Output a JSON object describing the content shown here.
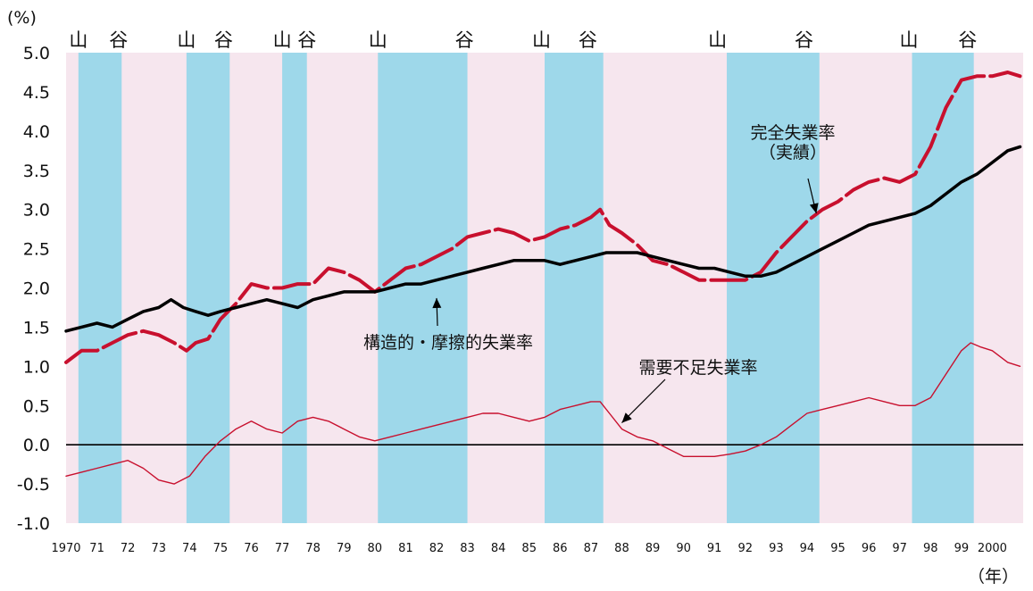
{
  "chart_data": {
    "type": "line",
    "y_unit_label": "(%)",
    "x_unit_label": "（年）",
    "ylim": [
      -1.0,
      5.0
    ],
    "xlim": [
      1970,
      2001
    ],
    "y_ticks": [
      "5.0",
      "4.5",
      "4.0",
      "3.5",
      "3.0",
      "2.5",
      "2.0",
      "1.5",
      "1.0",
      "0.5",
      "0.0",
      "-0.5",
      "-1.0"
    ],
    "x_ticks": [
      {
        "x": 1970,
        "label": "1970"
      },
      {
        "x": 1971,
        "label": "71"
      },
      {
        "x": 1972,
        "label": "72"
      },
      {
        "x": 1973,
        "label": "73"
      },
      {
        "x": 1974,
        "label": "74"
      },
      {
        "x": 1975,
        "label": "75"
      },
      {
        "x": 1976,
        "label": "76"
      },
      {
        "x": 1977,
        "label": "77"
      },
      {
        "x": 1978,
        "label": "78"
      },
      {
        "x": 1979,
        "label": "79"
      },
      {
        "x": 1980,
        "label": "80"
      },
      {
        "x": 1981,
        "label": "81"
      },
      {
        "x": 1982,
        "label": "82"
      },
      {
        "x": 1983,
        "label": "83"
      },
      {
        "x": 1984,
        "label": "84"
      },
      {
        "x": 1985,
        "label": "85"
      },
      {
        "x": 1986,
        "label": "86"
      },
      {
        "x": 1987,
        "label": "87"
      },
      {
        "x": 1988,
        "label": "88"
      },
      {
        "x": 1989,
        "label": "89"
      },
      {
        "x": 1990,
        "label": "90"
      },
      {
        "x": 1991,
        "label": "91"
      },
      {
        "x": 1992,
        "label": "92"
      },
      {
        "x": 1993,
        "label": "93"
      },
      {
        "x": 1994,
        "label": "94"
      },
      {
        "x": 1995,
        "label": "95"
      },
      {
        "x": 1996,
        "label": "96"
      },
      {
        "x": 1997,
        "label": "97"
      },
      {
        "x": 1998,
        "label": "98"
      },
      {
        "x": 1999,
        "label": "99"
      },
      {
        "x": 2000,
        "label": "2000"
      }
    ],
    "recession_bands": [
      {
        "start": 1970.4,
        "end": 1971.8
      },
      {
        "start": 1973.9,
        "end": 1975.3
      },
      {
        "start": 1977.0,
        "end": 1977.8
      },
      {
        "start": 1980.1,
        "end": 1983.0
      },
      {
        "start": 1985.5,
        "end": 1987.4
      },
      {
        "start": 1991.4,
        "end": 1994.4
      },
      {
        "start": 1997.4,
        "end": 1999.4
      }
    ],
    "phase_labels": [
      {
        "x": 1970.4,
        "text": "山"
      },
      {
        "x": 1971.7,
        "text": "谷"
      },
      {
        "x": 1973.9,
        "text": "山"
      },
      {
        "x": 1975.1,
        "text": "谷"
      },
      {
        "x": 1977.0,
        "text": "山"
      },
      {
        "x": 1977.8,
        "text": "谷"
      },
      {
        "x": 1980.1,
        "text": "山"
      },
      {
        "x": 1982.9,
        "text": "谷"
      },
      {
        "x": 1985.4,
        "text": "山"
      },
      {
        "x": 1986.9,
        "text": "谷"
      },
      {
        "x": 1991.1,
        "text": "山"
      },
      {
        "x": 1993.9,
        "text": "谷"
      },
      {
        "x": 1997.3,
        "text": "山"
      },
      {
        "x": 1999.2,
        "text": "谷"
      }
    ],
    "series": [
      {
        "name": "完全失業率（実績）",
        "color": "#c8102e",
        "style": "dashed-thick",
        "x": [
          1970.0,
          1970.5,
          1971.0,
          1971.5,
          1972.0,
          1972.5,
          1973.0,
          1973.5,
          1973.9,
          1974.2,
          1974.6,
          1975.0,
          1975.5,
          1976.0,
          1976.5,
          1977.0,
          1977.5,
          1978.0,
          1978.5,
          1979.0,
          1979.5,
          1980.0,
          1980.5,
          1981.0,
          1981.5,
          1982.0,
          1982.5,
          1983.0,
          1983.5,
          1984.0,
          1984.5,
          1985.0,
          1985.5,
          1986.0,
          1986.5,
          1987.0,
          1987.3,
          1987.6,
          1988.0,
          1988.5,
          1989.0,
          1989.5,
          1990.0,
          1990.5,
          1991.0,
          1991.5,
          1992.0,
          1992.5,
          1993.0,
          1993.5,
          1994.0,
          1994.5,
          1995.0,
          1995.5,
          1996.0,
          1996.5,
          1997.0,
          1997.5,
          1998.0,
          1998.5,
          1999.0,
          1999.5,
          2000.0,
          2000.5,
          2000.9
        ],
        "values": [
          1.05,
          1.2,
          1.2,
          1.3,
          1.4,
          1.45,
          1.4,
          1.3,
          1.2,
          1.3,
          1.35,
          1.6,
          1.8,
          2.05,
          2.0,
          2.0,
          2.05,
          2.05,
          2.25,
          2.2,
          2.1,
          1.95,
          2.1,
          2.25,
          2.3,
          2.4,
          2.5,
          2.65,
          2.7,
          2.75,
          2.7,
          2.6,
          2.65,
          2.75,
          2.8,
          2.9,
          3.0,
          2.8,
          2.7,
          2.55,
          2.35,
          2.3,
          2.2,
          2.1,
          2.1,
          2.1,
          2.1,
          2.2,
          2.45,
          2.65,
          2.85,
          3.0,
          3.1,
          3.25,
          3.35,
          3.4,
          3.35,
          3.45,
          3.8,
          4.3,
          4.65,
          4.7,
          4.7,
          4.75,
          4.7
        ]
      },
      {
        "name": "構造的・摩擦的失業率",
        "color": "#000000",
        "style": "solid-thick",
        "x": [
          1970.0,
          1970.5,
          1971.0,
          1971.5,
          1972.0,
          1972.5,
          1973.0,
          1973.4,
          1973.8,
          1974.2,
          1974.6,
          1975.0,
          1975.5,
          1976.0,
          1976.5,
          1977.0,
          1977.5,
          1978.0,
          1978.5,
          1979.0,
          1979.5,
          1980.0,
          1980.5,
          1981.0,
          1981.5,
          1982.0,
          1982.5,
          1983.0,
          1983.5,
          1984.0,
          1984.5,
          1985.0,
          1985.5,
          1986.0,
          1986.5,
          1987.0,
          1987.5,
          1988.0,
          1988.5,
          1989.0,
          1989.5,
          1990.0,
          1990.5,
          1991.0,
          1991.5,
          1992.0,
          1992.5,
          1993.0,
          1993.5,
          1994.0,
          1994.5,
          1995.0,
          1995.5,
          1996.0,
          1996.5,
          1997.0,
          1997.5,
          1998.0,
          1998.5,
          1999.0,
          1999.5,
          2000.0,
          2000.5,
          2000.9
        ],
        "values": [
          1.45,
          1.5,
          1.55,
          1.5,
          1.6,
          1.7,
          1.75,
          1.85,
          1.75,
          1.7,
          1.65,
          1.7,
          1.75,
          1.8,
          1.85,
          1.8,
          1.75,
          1.85,
          1.9,
          1.95,
          1.95,
          1.95,
          2.0,
          2.05,
          2.05,
          2.1,
          2.15,
          2.2,
          2.25,
          2.3,
          2.35,
          2.35,
          2.35,
          2.3,
          2.35,
          2.4,
          2.45,
          2.45,
          2.45,
          2.4,
          2.35,
          2.3,
          2.25,
          2.25,
          2.2,
          2.15,
          2.15,
          2.2,
          2.3,
          2.4,
          2.5,
          2.6,
          2.7,
          2.8,
          2.85,
          2.9,
          2.95,
          3.05,
          3.2,
          3.35,
          3.45,
          3.6,
          3.75,
          3.8
        ]
      },
      {
        "name": "需要不足失業率",
        "color": "#c8102e",
        "style": "solid-thin",
        "x": [
          1970.0,
          1970.5,
          1971.0,
          1971.5,
          1972.0,
          1972.5,
          1973.0,
          1973.5,
          1974.0,
          1974.5,
          1975.0,
          1975.5,
          1976.0,
          1976.5,
          1977.0,
          1977.5,
          1978.0,
          1978.5,
          1979.0,
          1979.5,
          1980.0,
          1980.5,
          1981.0,
          1981.5,
          1982.0,
          1982.5,
          1983.0,
          1983.5,
          1984.0,
          1984.5,
          1985.0,
          1985.5,
          1986.0,
          1986.5,
          1987.0,
          1987.3,
          1987.6,
          1988.0,
          1988.5,
          1989.0,
          1989.5,
          1990.0,
          1990.5,
          1991.0,
          1991.5,
          1992.0,
          1992.5,
          1993.0,
          1993.5,
          1994.0,
          1994.5,
          1995.0,
          1995.5,
          1996.0,
          1996.5,
          1997.0,
          1997.5,
          1998.0,
          1998.5,
          1999.0,
          1999.3,
          1999.6,
          2000.0,
          2000.5,
          2000.9
        ],
        "values": [
          -0.4,
          -0.35,
          -0.3,
          -0.25,
          -0.2,
          -0.3,
          -0.45,
          -0.5,
          -0.4,
          -0.15,
          0.05,
          0.2,
          0.3,
          0.2,
          0.15,
          0.3,
          0.35,
          0.3,
          0.2,
          0.1,
          0.05,
          0.1,
          0.15,
          0.2,
          0.25,
          0.3,
          0.35,
          0.4,
          0.4,
          0.35,
          0.3,
          0.35,
          0.45,
          0.5,
          0.55,
          0.55,
          0.4,
          0.2,
          0.1,
          0.05,
          -0.05,
          -0.15,
          -0.15,
          -0.15,
          -0.12,
          -0.08,
          0.0,
          0.1,
          0.25,
          0.4,
          0.45,
          0.5,
          0.55,
          0.6,
          0.55,
          0.5,
          0.5,
          0.6,
          0.9,
          1.2,
          1.3,
          1.25,
          1.2,
          1.05,
          1.0
        ]
      }
    ],
    "annotations": [
      {
        "lines": [
          "完全失業率",
          "（実績）"
        ],
        "series": 0
      },
      {
        "lines": [
          "構造的・摩擦的失業率"
        ],
        "series": 1
      },
      {
        "lines": [
          "需要不足失業率"
        ],
        "series": 2
      }
    ],
    "colors": {
      "background_band": "#f6e6ee",
      "recession_band": "#9ed8ea",
      "zero_line": "#000000"
    }
  }
}
